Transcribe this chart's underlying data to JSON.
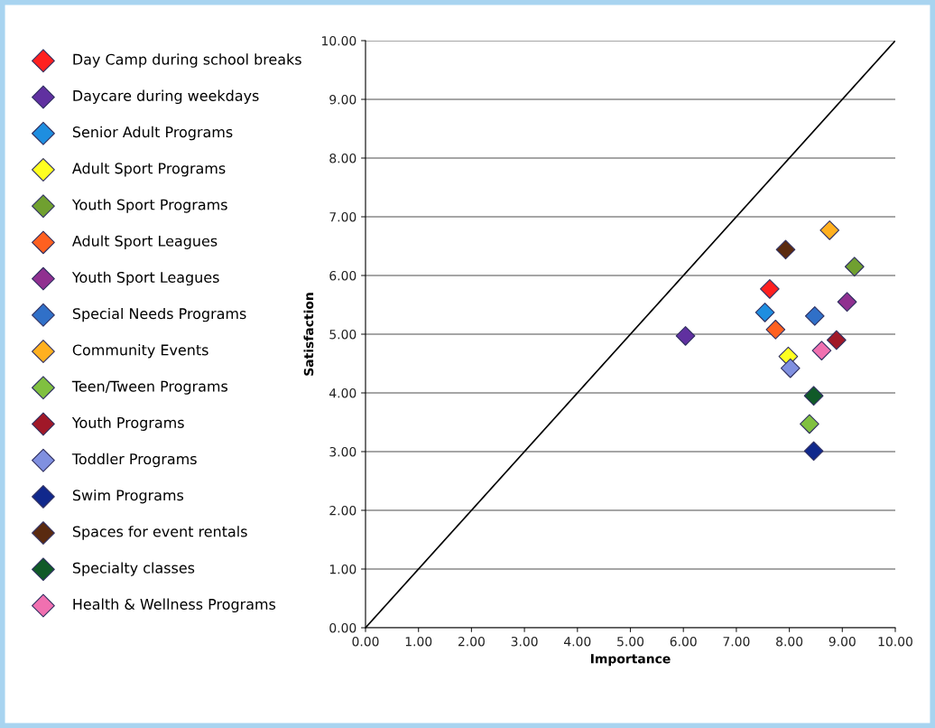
{
  "chart_data": {
    "type": "scatter",
    "xlabel": "Importance",
    "ylabel": "Satisfaction",
    "xlim": [
      0,
      10
    ],
    "ylim": [
      0,
      10
    ],
    "xticks": [
      {
        "value": 0,
        "label": "0.00"
      },
      {
        "value": 1,
        "label": "1.00"
      },
      {
        "value": 2,
        "label": "2.00"
      },
      {
        "value": 3,
        "label": "3.00"
      },
      {
        "value": 4,
        "label": "4.00"
      },
      {
        "value": 5,
        "label": "5.00"
      },
      {
        "value": 6,
        "label": "6.00"
      },
      {
        "value": 7,
        "label": "7.00"
      },
      {
        "value": 8,
        "label": "8.00"
      },
      {
        "value": 9,
        "label": "9.00"
      },
      {
        "value": 10,
        "label": "10.00"
      }
    ],
    "yticks": [
      {
        "value": 0,
        "label": "0.00"
      },
      {
        "value": 1,
        "label": "1.00"
      },
      {
        "value": 2,
        "label": "2.00"
      },
      {
        "value": 3,
        "label": "3.00"
      },
      {
        "value": 4,
        "label": "4.00"
      },
      {
        "value": 5,
        "label": "5.00"
      },
      {
        "value": 6,
        "label": "6.00"
      },
      {
        "value": 7,
        "label": "7.00"
      },
      {
        "value": 8,
        "label": "8.00"
      },
      {
        "value": 9,
        "label": "9.00"
      },
      {
        "value": 10,
        "label": "10.00"
      }
    ],
    "grid": "y",
    "legend": "left",
    "marker": "diamond",
    "series": [
      {
        "type": "line",
        "marker": "none",
        "color": "#000000",
        "x": [
          0,
          10
        ],
        "values": [
          0,
          10
        ]
      },
      {
        "name": "Day Camp during school breaks",
        "color": "#ff2020",
        "x": [
          7.63
        ],
        "values": [
          5.77
        ]
      },
      {
        "name": "Daycare during weekdays",
        "color": "#6030a0",
        "x": [
          6.04
        ],
        "values": [
          4.97
        ]
      },
      {
        "name": "Senior Adult Programs",
        "color": "#1e8ee0",
        "x": [
          7.54
        ],
        "values": [
          5.37
        ]
      },
      {
        "name": "Adult Sport Programs",
        "color": "#ffff20",
        "x": [
          7.98
        ],
        "values": [
          4.62
        ]
      },
      {
        "name": "Youth Sport Programs",
        "color": "#70a030",
        "x": [
          9.23
        ],
        "values": [
          6.15
        ]
      },
      {
        "name": "Adult Sport Leagues",
        "color": "#ff6020",
        "x": [
          7.74
        ],
        "values": [
          5.08
        ]
      },
      {
        "name": "Youth Sport Leagues",
        "color": "#903090",
        "x": [
          9.09
        ],
        "values": [
          5.55
        ]
      },
      {
        "name": "Special Needs Programs",
        "color": "#3070c8",
        "x": [
          8.48
        ],
        "values": [
          5.31
        ]
      },
      {
        "name": "Community Events",
        "color": "#ffb020",
        "x": [
          8.76
        ],
        "values": [
          6.77
        ]
      },
      {
        "name": "Teen/Tween Programs",
        "color": "#80c040",
        "x": [
          8.38
        ],
        "values": [
          3.47
        ]
      },
      {
        "name": "Youth Programs",
        "color": "#a01828",
        "x": [
          8.89
        ],
        "values": [
          4.9
        ]
      },
      {
        "name": "Toddler Programs",
        "color": "#8090e0",
        "x": [
          8.02
        ],
        "values": [
          4.42
        ]
      },
      {
        "name": "Swim Programs",
        "color": "#10288c",
        "x": [
          8.46
        ],
        "values": [
          3.01
        ]
      },
      {
        "name": "Spaces for event rentals",
        "color": "#5a2a10",
        "x": [
          7.93
        ],
        "values": [
          6.44
        ]
      },
      {
        "name": "Specialty classes",
        "color": "#105a28",
        "x": [
          8.46
        ],
        "values": [
          3.95
        ]
      },
      {
        "name": "Health & Wellness Programs",
        "color": "#f070b0",
        "x": [
          8.61
        ],
        "values": [
          4.72
        ]
      }
    ]
  }
}
